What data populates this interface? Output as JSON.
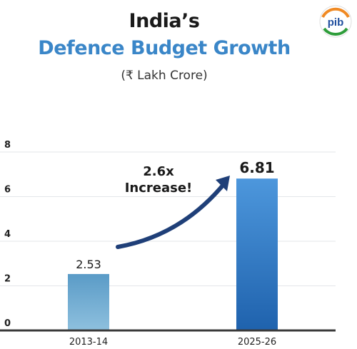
{
  "header": {
    "title_line1": "India’s",
    "title_line2": "Defence Budget Growth",
    "subtitle": "(₹ Lakh Crore)"
  },
  "logo": {
    "text": "pib",
    "icon": "pib-logo"
  },
  "annotation": {
    "line1": "2.6x",
    "line2": "Increase!"
  },
  "colors": {
    "bar_light": "#6aa6cc",
    "bar_dark": "#2f78c4",
    "title_accent": "#3a86c8"
  },
  "chart_data": {
    "type": "bar",
    "title": "Defence Budget Growth",
    "categories": [
      "2013-14",
      "2025-26"
    ],
    "values": [
      2.53,
      6.81
    ],
    "data_labels": [
      "2.53",
      "6.81"
    ],
    "ylim": [
      0,
      8
    ],
    "yticks": [
      0,
      2,
      4,
      6,
      8
    ],
    "grid": true
  }
}
